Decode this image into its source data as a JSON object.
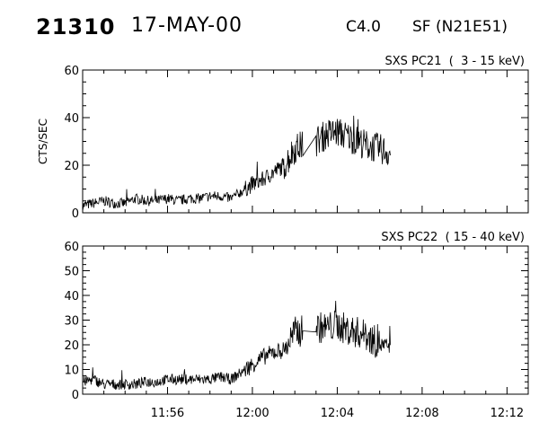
{
  "header": {
    "event_id": "21310",
    "date": "17-MAY-00",
    "flare_class": "C4.0",
    "flare_location": "SF (N21E51)"
  },
  "chart_data": [
    {
      "type": "line",
      "title": "SXS PC21  (  3 - 15 keV)",
      "xlabel": "",
      "ylabel": "CTS/SEC",
      "x_unit": "minutes after 11:52",
      "xlim": [
        0,
        21
      ],
      "ylim": [
        0,
        60
      ],
      "yticks": [
        0,
        20,
        40,
        60
      ],
      "xticks": [
        "11:56",
        "12:00",
        "12:04",
        "12:08",
        "12:12"
      ],
      "series": [
        {
          "x": [
            0.0,
            0.5,
            1.0,
            1.5,
            2.0,
            2.5,
            3.0,
            3.5,
            4.0,
            4.5,
            5.0,
            5.5,
            6.0,
            6.5,
            7.0,
            7.5,
            8.0,
            8.5,
            9.0,
            9.5,
            10.0,
            10.5,
            11.0,
            11.5,
            12.0,
            12.5,
            13.0,
            13.5,
            14.0,
            14.5
          ],
          "y": [
            3,
            4,
            5,
            4,
            4,
            6,
            5,
            5,
            6,
            5,
            6,
            6,
            7,
            7,
            6,
            9,
            12,
            14,
            17,
            20,
            27,
            29,
            30,
            33,
            34,
            32,
            30,
            28,
            27,
            25
          ]
        }
      ]
    },
    {
      "type": "line",
      "title": "SXS PC22  ( 15 - 40 keV)",
      "xlabel": "",
      "ylabel": "",
      "x_unit": "minutes after 11:52",
      "xlim": [
        0,
        21
      ],
      "ylim": [
        0,
        60
      ],
      "yticks": [
        0,
        10,
        20,
        30,
        40,
        50,
        60
      ],
      "xticks": [
        "11:56",
        "12:00",
        "12:04",
        "12:08",
        "12:12"
      ],
      "series": [
        {
          "x": [
            0.0,
            0.5,
            1.0,
            1.5,
            2.0,
            2.5,
            3.0,
            3.5,
            4.0,
            4.5,
            5.0,
            5.5,
            6.0,
            6.5,
            7.0,
            7.5,
            8.0,
            8.5,
            9.0,
            9.5,
            10.0,
            10.5,
            11.0,
            11.5,
            12.0,
            12.5,
            13.0,
            13.5,
            14.0,
            14.5
          ],
          "y": [
            5,
            6,
            4,
            4,
            4,
            4,
            5,
            5,
            6,
            6,
            6,
            6,
            6,
            7,
            6,
            9,
            12,
            15,
            17,
            18,
            25,
            26,
            27,
            27,
            28,
            26,
            25,
            23,
            20,
            19
          ]
        }
      ]
    }
  ]
}
